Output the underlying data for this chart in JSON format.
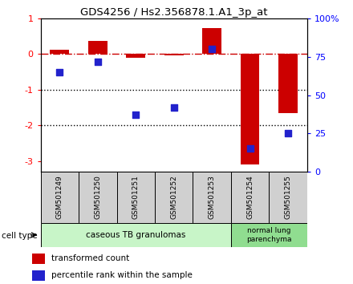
{
  "title": "GDS4256 / Hs2.356878.1.A1_3p_at",
  "samples": [
    "GSM501249",
    "GSM501250",
    "GSM501251",
    "GSM501252",
    "GSM501253",
    "GSM501254",
    "GSM501255"
  ],
  "red_values": [
    0.13,
    0.38,
    -0.1,
    -0.03,
    0.72,
    -3.1,
    -1.65
  ],
  "blue_values_pct": [
    65,
    72,
    37,
    42,
    80,
    15,
    25
  ],
  "ylim_left": [
    -3.3,
    1.0
  ],
  "right_ticks": [
    0,
    25,
    50,
    75,
    100
  ],
  "right_tick_labels": [
    "0",
    "25",
    "50",
    "75",
    "100%"
  ],
  "left_ticks": [
    1,
    0,
    -1,
    -2,
    -3
  ],
  "bar_width": 0.5,
  "red_color": "#CC0000",
  "blue_color": "#2222CC",
  "dashdot_color": "#CC0000",
  "dotted_color": "#000000",
  "ct_color_1": "#c8f5c8",
  "ct_color_2": "#90dd90",
  "legend_red": "transformed count",
  "legend_blue": "percentile rank within the sample",
  "cell_type_label": "cell type"
}
